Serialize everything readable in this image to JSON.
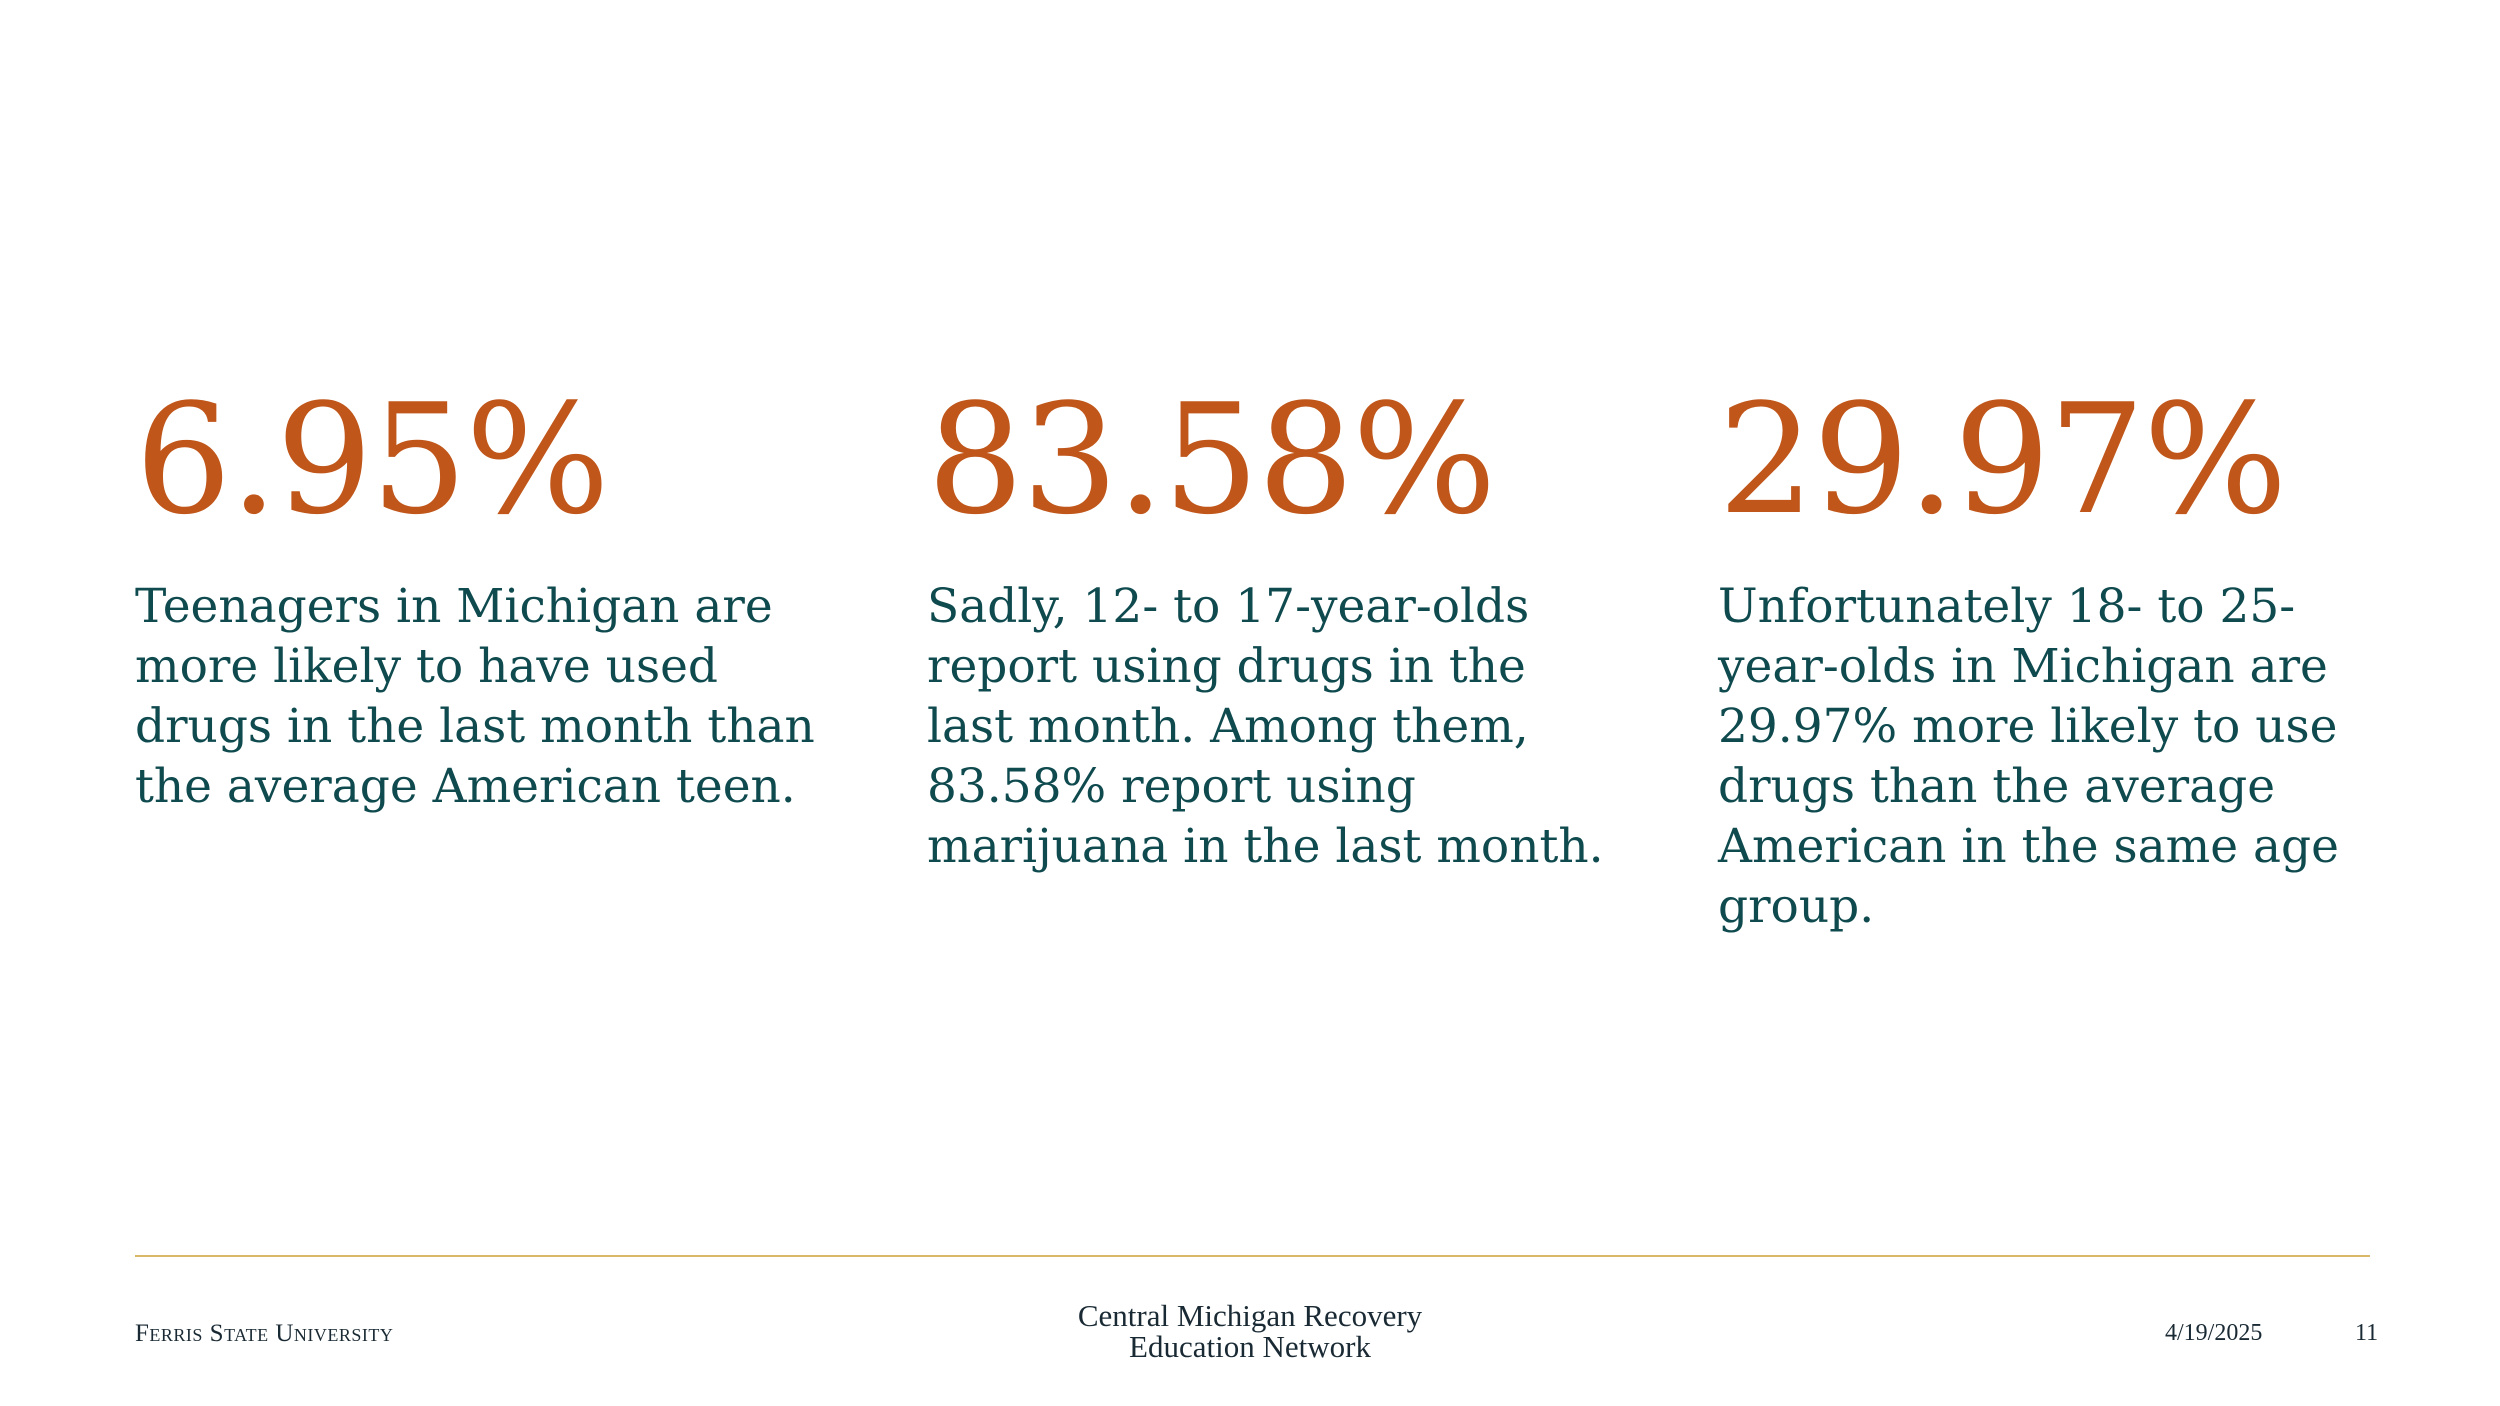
{
  "stats": [
    {
      "value": "6.95%",
      "description": "Teenagers in Michigan are more likely to have used drugs in the last month than the average American teen."
    },
    {
      "value": "83.58%",
      "description": "Sadly, 12- to 17-year-olds report using drugs in the last month. Among them, 83.58% report using marijuana in the last month."
    },
    {
      "value": "29.97%",
      "description": "Unfortunately 18- to 25-year-olds in Michigan are 29.97% more likely to use drugs than the average American in the same age group."
    }
  ],
  "footer": {
    "organization": "Ferris State University",
    "logo_line1": "Central Michigan Recovery",
    "logo_line2": "Education Network",
    "date": "4/19/2025",
    "page_number": "11"
  },
  "colors": {
    "stat_value": "#c0561a",
    "stat_text": "#0f4a4f",
    "footer_rule": "#d9b86a",
    "footer_text": "#1a2a34"
  }
}
